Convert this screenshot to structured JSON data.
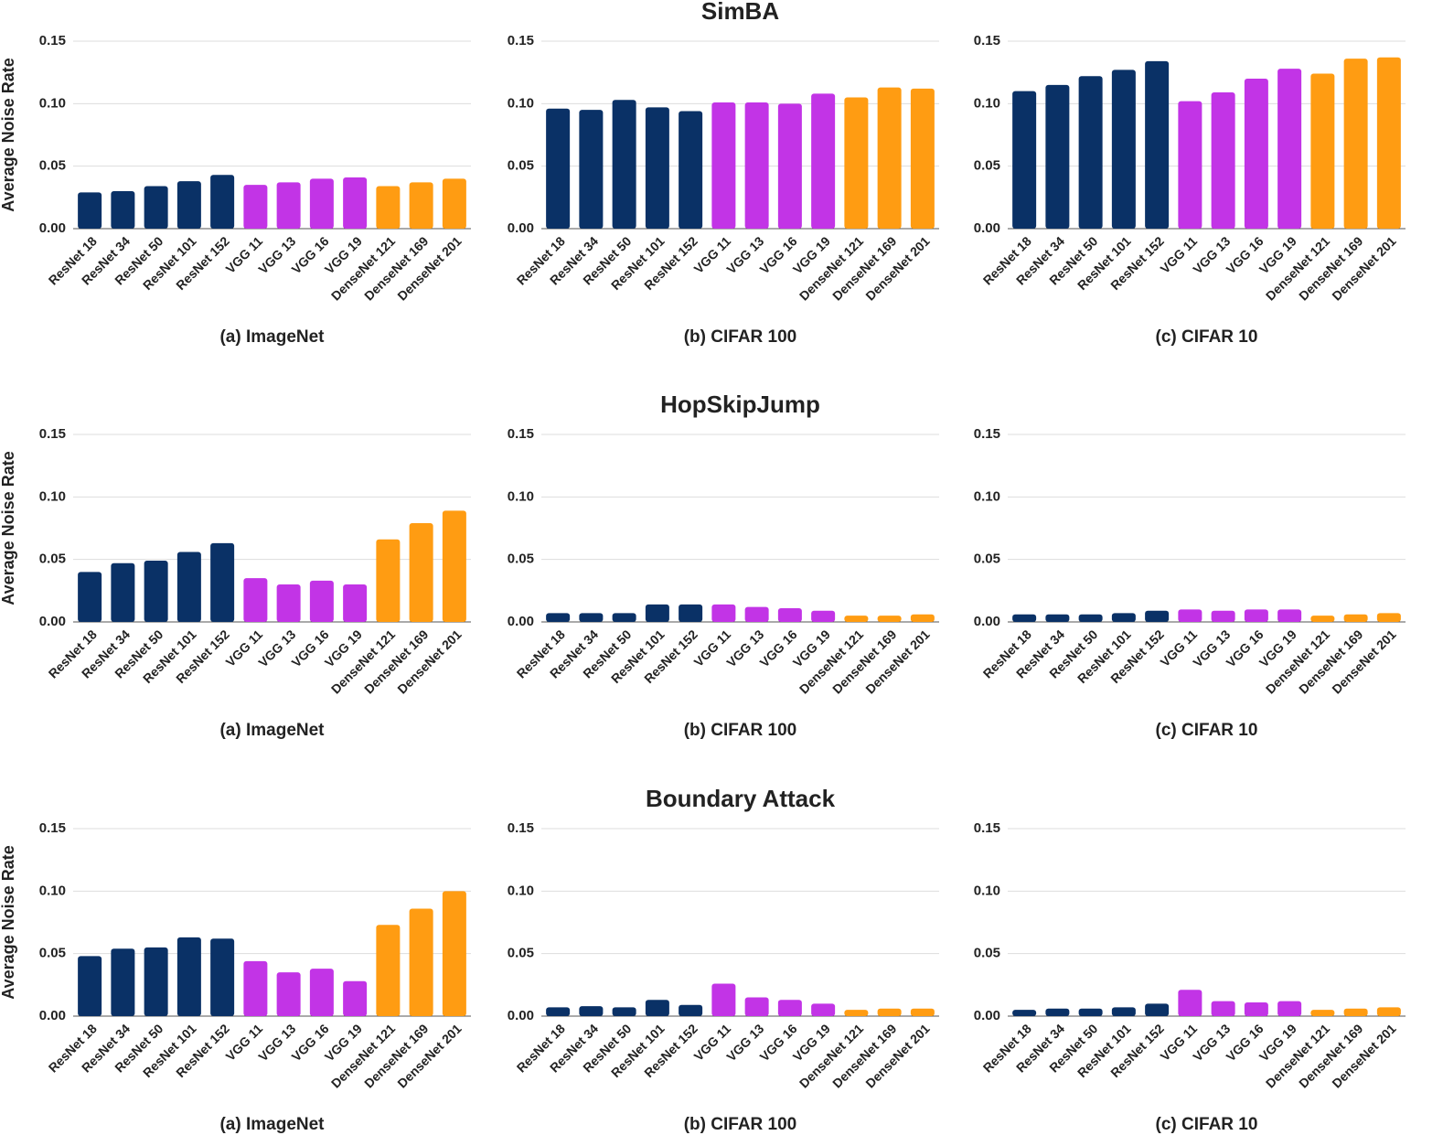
{
  "chart_data": [
    {
      "type": "bar",
      "subtitle": "(a) ImageNet",
      "y_label": "Average Noise Rate",
      "categories": [
        "ResNet 18",
        "ResNet 34",
        "ResNet 50",
        "ResNet 101",
        "ResNet 152",
        "VGG 11",
        "VGG 13",
        "VGG 16",
        "VGG 19",
        "DenseNet 121",
        "DenseNet 169",
        "DenseNet 201"
      ],
      "values": [
        0.029,
        0.03,
        0.034,
        0.038,
        0.043,
        0.035,
        0.037,
        0.04,
        0.041,
        0.034,
        0.037,
        0.04
      ],
      "colors": [
        "#0a3166",
        "#0a3166",
        "#0a3166",
        "#0a3166",
        "#0a3166",
        "#c234e6",
        "#c234e6",
        "#c234e6",
        "#c234e6",
        "#ff9c12",
        "#ff9c12",
        "#ff9c12"
      ],
      "ylim": [
        0,
        0.15
      ],
      "yticks": [
        {
          "value": 0,
          "label": "0.00"
        },
        0.05,
        {
          "value": 0.1,
          "label": "0.10"
        },
        0.15
      ],
      "grid": true
    },
    {
      "type": "bar",
      "title": "SimBA",
      "subtitle": "(b) CIFAR 100",
      "categories": [
        "ResNet 18",
        "ResNet 34",
        "ResNet 50",
        "ResNet 101",
        "ResNet 152",
        "VGG 11",
        "VGG 13",
        "VGG 16",
        "VGG 19",
        "DenseNet 121",
        "DenseNet 169",
        "DenseNet 201"
      ],
      "values": [
        0.096,
        0.095,
        0.103,
        0.097,
        0.094,
        0.101,
        0.101,
        0.1,
        0.108,
        0.105,
        0.113,
        0.112
      ],
      "colors": [
        "#0a3166",
        "#0a3166",
        "#0a3166",
        "#0a3166",
        "#0a3166",
        "#c234e6",
        "#c234e6",
        "#c234e6",
        "#c234e6",
        "#ff9c12",
        "#ff9c12",
        "#ff9c12"
      ],
      "ylim": [
        0,
        0.15
      ],
      "yticks": [
        {
          "value": 0,
          "label": "0.00"
        },
        0.05,
        {
          "value": 0.1,
          "label": "0.10"
        },
        0.15
      ],
      "grid": true
    },
    {
      "type": "bar",
      "subtitle": "(c) CIFAR 10",
      "categories": [
        "ResNet 18",
        "ResNet 34",
        "ResNet 50",
        "ResNet 101",
        "ResNet 152",
        "VGG 11",
        "VGG 13",
        "VGG 16",
        "VGG 19",
        "DenseNet 121",
        "DenseNet 169",
        "DenseNet 201"
      ],
      "values": [
        0.11,
        0.115,
        0.122,
        0.127,
        0.134,
        0.102,
        0.109,
        0.12,
        0.128,
        0.124,
        0.136,
        0.137
      ],
      "colors": [
        "#0a3166",
        "#0a3166",
        "#0a3166",
        "#0a3166",
        "#0a3166",
        "#c234e6",
        "#c234e6",
        "#c234e6",
        "#c234e6",
        "#ff9c12",
        "#ff9c12",
        "#ff9c12"
      ],
      "ylim": [
        0,
        0.15
      ],
      "yticks": [
        {
          "value": 0,
          "label": "0.00"
        },
        0.05,
        {
          "value": 0.1,
          "label": "0.10"
        },
        0.15
      ],
      "grid": true
    },
    {
      "type": "bar",
      "subtitle": "(a) ImageNet",
      "y_label": "Average Noise Rate",
      "categories": [
        "ResNet 18",
        "ResNet 34",
        "ResNet 50",
        "ResNet 101",
        "ResNet 152",
        "VGG 11",
        "VGG 13",
        "VGG 16",
        "VGG 19",
        "DenseNet 121",
        "DenseNet 169",
        "DenseNet 201"
      ],
      "values": [
        0.04,
        0.047,
        0.049,
        0.056,
        0.063,
        0.035,
        0.03,
        0.033,
        0.03,
        0.066,
        0.079,
        0.089
      ],
      "colors": [
        "#0a3166",
        "#0a3166",
        "#0a3166",
        "#0a3166",
        "#0a3166",
        "#c234e6",
        "#c234e6",
        "#c234e6",
        "#c234e6",
        "#ff9c12",
        "#ff9c12",
        "#ff9c12"
      ],
      "ylim": [
        0,
        0.15
      ],
      "yticks": [
        {
          "value": 0,
          "label": "0.00"
        },
        0.05,
        {
          "value": 0.1,
          "label": "0.10"
        },
        0.15
      ],
      "grid": true
    },
    {
      "type": "bar",
      "title": "HopSkipJump",
      "subtitle": "(b) CIFAR 100",
      "categories": [
        "ResNet 18",
        "ResNet 34",
        "ResNet 50",
        "ResNet 101",
        "ResNet 152",
        "VGG 11",
        "VGG 13",
        "VGG 16",
        "VGG 19",
        "DenseNet 121",
        "DenseNet 169",
        "DenseNet 201"
      ],
      "values": [
        0.007,
        0.007,
        0.007,
        0.014,
        0.014,
        0.014,
        0.012,
        0.011,
        0.009,
        0.005,
        0.005,
        0.006
      ],
      "colors": [
        "#0a3166",
        "#0a3166",
        "#0a3166",
        "#0a3166",
        "#0a3166",
        "#c234e6",
        "#c234e6",
        "#c234e6",
        "#c234e6",
        "#ff9c12",
        "#ff9c12",
        "#ff9c12"
      ],
      "ylim": [
        0,
        0.15
      ],
      "yticks": [
        {
          "value": 0,
          "label": "0.00"
        },
        0.05,
        {
          "value": 0.1,
          "label": "0.10"
        },
        0.15
      ],
      "grid": true
    },
    {
      "type": "bar",
      "subtitle": "(c) CIFAR 10",
      "categories": [
        "ResNet 18",
        "ResNet 34",
        "ResNet 50",
        "ResNet 101",
        "ResNet 152",
        "VGG 11",
        "VGG 13",
        "VGG 16",
        "VGG 19",
        "DenseNet 121",
        "DenseNet 169",
        "DenseNet 201"
      ],
      "values": [
        0.006,
        0.006,
        0.006,
        0.007,
        0.009,
        0.01,
        0.009,
        0.01,
        0.01,
        0.005,
        0.006,
        0.007
      ],
      "colors": [
        "#0a3166",
        "#0a3166",
        "#0a3166",
        "#0a3166",
        "#0a3166",
        "#c234e6",
        "#c234e6",
        "#c234e6",
        "#c234e6",
        "#ff9c12",
        "#ff9c12",
        "#ff9c12"
      ],
      "ylim": [
        0,
        0.15
      ],
      "yticks": [
        {
          "value": 0,
          "label": "0.00"
        },
        0.05,
        {
          "value": 0.1,
          "label": "0.10"
        },
        0.15
      ],
      "grid": true
    },
    {
      "type": "bar",
      "subtitle": "(a) ImageNet",
      "y_label": "Average Noise Rate",
      "categories": [
        "ResNet 18",
        "ResNet 34",
        "ResNet 50",
        "ResNet 101",
        "ResNet 152",
        "VGG 11",
        "VGG 13",
        "VGG 16",
        "VGG 19",
        "DenseNet 121",
        "DenseNet 169",
        "DenseNet 201"
      ],
      "values": [
        0.048,
        0.054,
        0.055,
        0.063,
        0.062,
        0.044,
        0.035,
        0.038,
        0.028,
        0.073,
        0.086,
        0.1
      ],
      "colors": [
        "#0a3166",
        "#0a3166",
        "#0a3166",
        "#0a3166",
        "#0a3166",
        "#c234e6",
        "#c234e6",
        "#c234e6",
        "#c234e6",
        "#ff9c12",
        "#ff9c12",
        "#ff9c12"
      ],
      "ylim": [
        0,
        0.15
      ],
      "yticks": [
        {
          "value": 0,
          "label": "0.00"
        },
        0.05,
        {
          "value": 0.1,
          "label": "0.10"
        },
        0.15
      ],
      "grid": true
    },
    {
      "type": "bar",
      "title": "Boundary Attack",
      "subtitle": "(b) CIFAR 100",
      "categories": [
        "ResNet 18",
        "ResNet 34",
        "ResNet 50",
        "ResNet 101",
        "ResNet 152",
        "VGG 11",
        "VGG 13",
        "VGG 16",
        "VGG 19",
        "DenseNet 121",
        "DenseNet 169",
        "DenseNet 201"
      ],
      "values": [
        0.007,
        0.008,
        0.007,
        0.013,
        0.009,
        0.026,
        0.015,
        0.013,
        0.01,
        0.005,
        0.006,
        0.006
      ],
      "colors": [
        "#0a3166",
        "#0a3166",
        "#0a3166",
        "#0a3166",
        "#0a3166",
        "#c234e6",
        "#c234e6",
        "#c234e6",
        "#c234e6",
        "#ff9c12",
        "#ff9c12",
        "#ff9c12"
      ],
      "ylim": [
        0,
        0.15
      ],
      "yticks": [
        {
          "value": 0,
          "label": "0.00"
        },
        0.05,
        {
          "value": 0.1,
          "label": "0.10"
        },
        0.15
      ],
      "grid": true
    },
    {
      "type": "bar",
      "subtitle": "(c) CIFAR 10",
      "categories": [
        "ResNet 18",
        "ResNet 34",
        "ResNet 50",
        "ResNet 101",
        "ResNet 152",
        "VGG 11",
        "VGG 13",
        "VGG 16",
        "VGG 19",
        "DenseNet 121",
        "DenseNet 169",
        "DenseNet 201"
      ],
      "values": [
        0.005,
        0.006,
        0.006,
        0.007,
        0.01,
        0.021,
        0.012,
        0.011,
        0.012,
        0.005,
        0.006,
        0.007
      ],
      "colors": [
        "#0a3166",
        "#0a3166",
        "#0a3166",
        "#0a3166",
        "#0a3166",
        "#c234e6",
        "#c234e6",
        "#c234e6",
        "#c234e6",
        "#ff9c12",
        "#ff9c12",
        "#ff9c12"
      ],
      "ylim": [
        0,
        0.15
      ],
      "yticks": [
        {
          "value": 0,
          "label": "0.00"
        },
        0.05,
        {
          "value": 0.1,
          "label": "0.10"
        },
        0.15
      ],
      "grid": true
    }
  ]
}
